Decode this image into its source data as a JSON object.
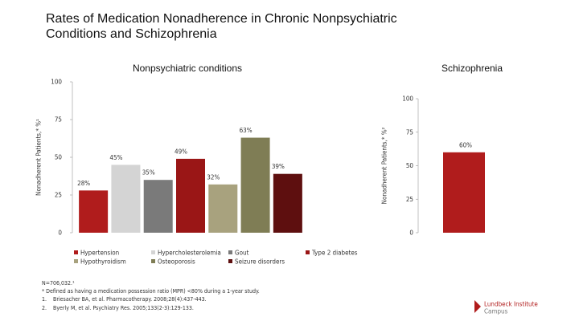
{
  "title": "Rates of Medication Nonadherence in Chronic Nonpsychiatric Conditions and Schizophrenia",
  "footnotes": [
    "N=706,032.¹",
    "* Defined as having a medication possession ratio (MPR) <80% during a 1-year study.",
    "1.",
    "Briesacher BA, et al. Pharmacotherapy. 2008;28(4):437-443.",
    "2.",
    "Byerly M, et al. Psychiatry Res. 2005;133(2-3):129-133."
  ],
  "logo": [
    "Lundbeck Institute",
    "Campus"
  ],
  "chart_data": [
    {
      "type": "bar",
      "title": "Nonpsychiatric conditions",
      "y_label": "Nonadherent Patients,* %¹",
      "categories": [
        "Hypertension",
        "Hypercholesterolemia",
        "Gout",
        "Type 2 diabetes",
        "Hypothyroidism",
        "Osteoporosis",
        "Seizure disorders"
      ],
      "values": [
        28,
        45,
        35,
        49,
        32,
        63,
        39
      ],
      "value_labels": [
        "28%",
        "45%",
        "35%",
        "49%",
        "32%",
        "63%",
        "39%"
      ],
      "colors": [
        "#b01c1c",
        "#d4d4d4",
        "#7a7a7a",
        "#9a1616",
        "#a8a27e",
        "#7f7d55",
        "#5e0f0f"
      ],
      "ylim": [
        0,
        100
      ],
      "yticks": [
        0,
        25,
        50,
        75,
        100
      ]
    },
    {
      "type": "bar",
      "title": "Schizophrenia",
      "y_label": "Nonadherent Patients,* %²",
      "categories": [
        null
      ],
      "values": [
        60
      ],
      "value_labels": [
        "60%"
      ],
      "colors": [
        "#b01c1c"
      ],
      "ylim": [
        0,
        100
      ],
      "yticks": [
        0,
        25,
        50,
        75,
        100
      ]
    }
  ]
}
